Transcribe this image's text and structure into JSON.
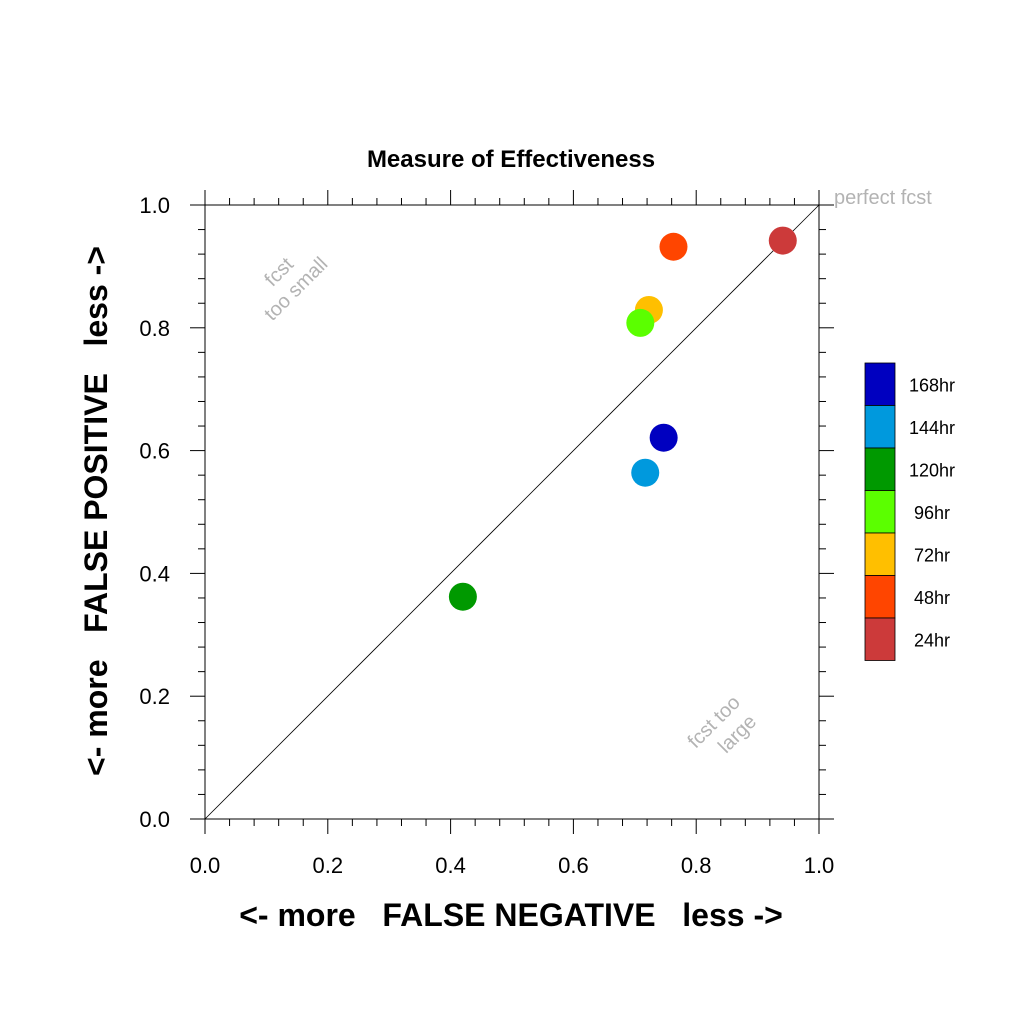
{
  "chart_data": {
    "type": "scatter",
    "title": "Measure of Effectiveness",
    "xlabel": "<- more   FALSE NEGATIVE   less ->",
    "ylabel": "<- more   FALSE POSITIVE   less ->",
    "xlim": [
      0,
      1
    ],
    "ylim": [
      0,
      1
    ],
    "x_ticks": [
      "0.0",
      "0.2",
      "0.4",
      "0.6",
      "0.8",
      "1.0"
    ],
    "y_ticks": [
      "0.0",
      "0.2",
      "0.4",
      "0.6",
      "0.8",
      "1.0"
    ],
    "grid": false,
    "legend_position": "right",
    "diagonal_line": true,
    "annotations": {
      "perfect": "perfect fcst",
      "small_line1": "fcst",
      "small_line2": "too small",
      "large_line1": "fcst too",
      "large_line2": "large"
    },
    "series": [
      {
        "name": "24hr",
        "color": "#cc3a3a",
        "x": 0.941,
        "y": 0.942
      },
      {
        "name": "48hr",
        "color": "#ff4500",
        "x": 0.763,
        "y": 0.932
      },
      {
        "name": "72hr",
        "color": "#ffbf00",
        "x": 0.723,
        "y": 0.829
      },
      {
        "name": "96hr",
        "color": "#5bff00",
        "x": 0.709,
        "y": 0.808
      },
      {
        "name": "120hr",
        "color": "#009900",
        "x": 0.42,
        "y": 0.362
      },
      {
        "name": "144hr",
        "color": "#0099dd",
        "x": 0.717,
        "y": 0.564
      },
      {
        "name": "168hr",
        "color": "#0000c0",
        "x": 0.747,
        "y": 0.621
      }
    ],
    "legend_order": [
      "168hr",
      "144hr",
      "120hr",
      "96hr",
      "72hr",
      "48hr",
      "24hr"
    ]
  }
}
